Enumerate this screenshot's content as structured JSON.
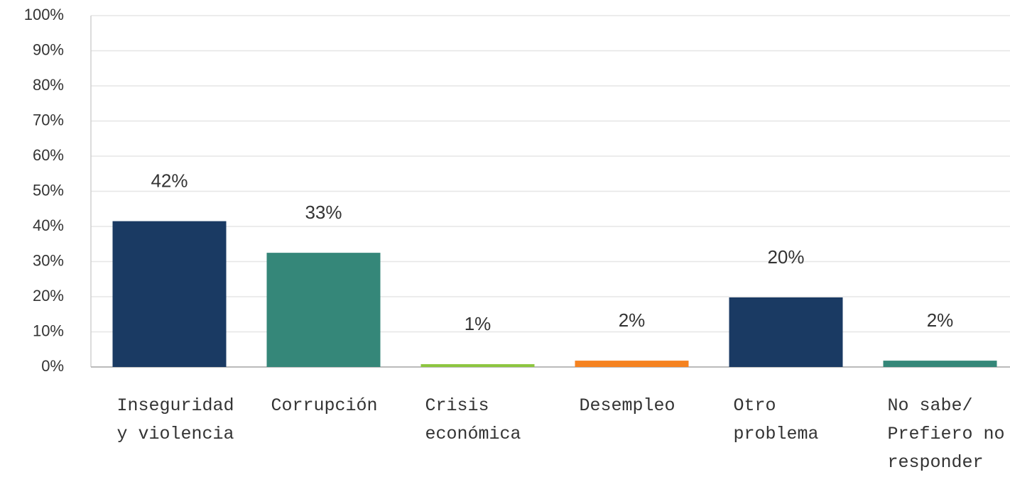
{
  "chart_data": {
    "type": "bar",
    "categories": [
      "Inseguridad y violencia",
      "Corrupción",
      "Crisis económica",
      "Desempleo",
      "Otro problema",
      "No sabe/ Prefiero no responder"
    ],
    "values": [
      41.5,
      32.5,
      0.8,
      1.8,
      19.8,
      1.8
    ],
    "value_labels": [
      "42%",
      "33%",
      "1%",
      "2%",
      "20%",
      "2%"
    ],
    "colors": [
      "#1a3a63",
      "#358779",
      "#8dc63f",
      "#f58220",
      "#1a3a63",
      "#358779"
    ],
    "ylim": [
      0,
      100
    ],
    "yticks": [
      {
        "value": 0,
        "label": "0%"
      },
      {
        "value": 10,
        "label": "10%"
      },
      {
        "value": 20,
        "label": "20%"
      },
      {
        "value": 30,
        "label": "30%"
      },
      {
        "value": 40,
        "label": "40%"
      },
      {
        "value": 50,
        "label": "50%"
      },
      {
        "value": 60,
        "label": "60%"
      },
      {
        "value": 70,
        "label": "70%"
      },
      {
        "value": 80,
        "label": "80%"
      },
      {
        "value": 90,
        "label": "90%"
      },
      {
        "value": 100,
        "label": "100%"
      }
    ],
    "grid": true
  }
}
